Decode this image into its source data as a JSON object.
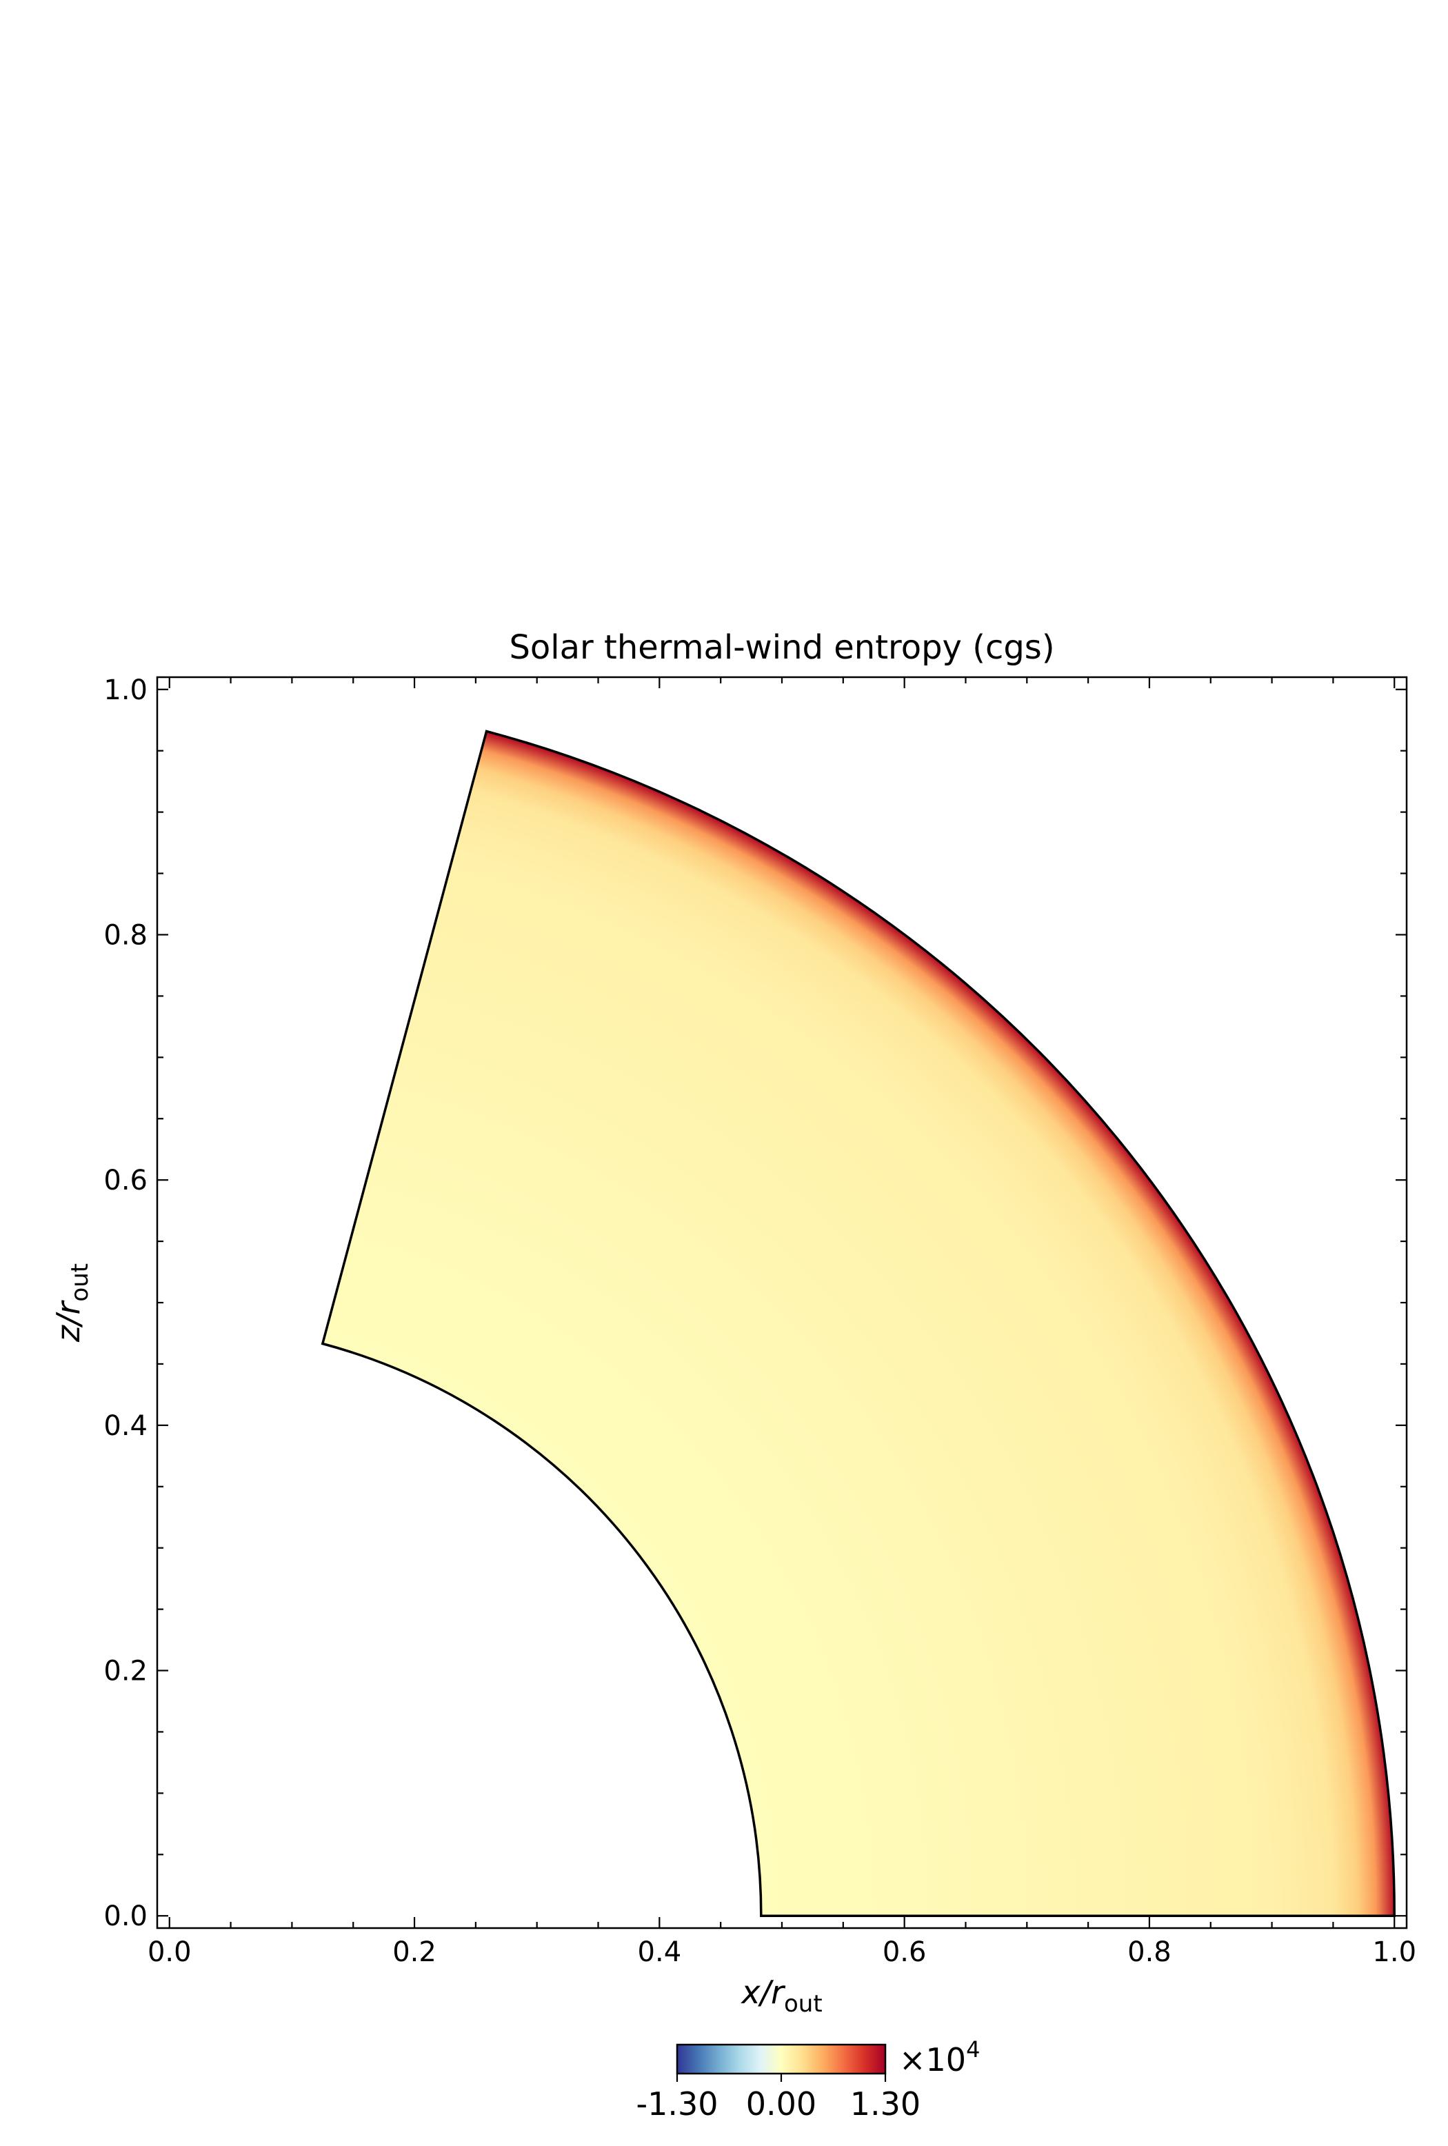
{
  "chart_data": {
    "type": "heatmap",
    "title": "Solar thermal-wind entropy (cgs)",
    "xlabel": "x/r",
    "xlabel_sub": "out",
    "ylabel": "z/r",
    "ylabel_sub": "out",
    "xlim": [
      -0.01,
      1.01
    ],
    "ylim": [
      -0.01,
      1.01
    ],
    "xticks": [
      "0.0",
      "0.2",
      "0.4",
      "0.6",
      "0.8",
      "1.0"
    ],
    "yticks": [
      "0.0",
      "0.2",
      "0.4",
      "0.6",
      "0.8",
      "1.0"
    ],
    "domain": {
      "r_inner": 0.483,
      "r_outer": 1.0,
      "theta_min_deg": 0,
      "theta_max_deg": 75
    },
    "field_profile": [
      {
        "r": 0.483,
        "value": 0.02
      },
      {
        "r": 0.6,
        "value": 0.04
      },
      {
        "r": 0.75,
        "value": 0.08
      },
      {
        "r": 0.9,
        "value": 0.12
      },
      {
        "r": 0.95,
        "value": 0.2
      },
      {
        "r": 0.97,
        "value": 0.35
      },
      {
        "r": 0.985,
        "value": 0.6
      },
      {
        "r": 1.0,
        "value": 1.2
      }
    ],
    "colorbar": {
      "colormap": "RdYlBu_r",
      "min": -1.3,
      "max": 1.3,
      "ticks": [
        "-1.30",
        "0.00",
        "1.30"
      ],
      "multiplier_base": "×10",
      "multiplier_exp": "4",
      "colors": [
        "#313695",
        "#4575b4",
        "#74add1",
        "#abd9e9",
        "#e0f3f8",
        "#ffffbf",
        "#fee090",
        "#fdae61",
        "#f46d43",
        "#d73027",
        "#a50026"
      ]
    }
  }
}
